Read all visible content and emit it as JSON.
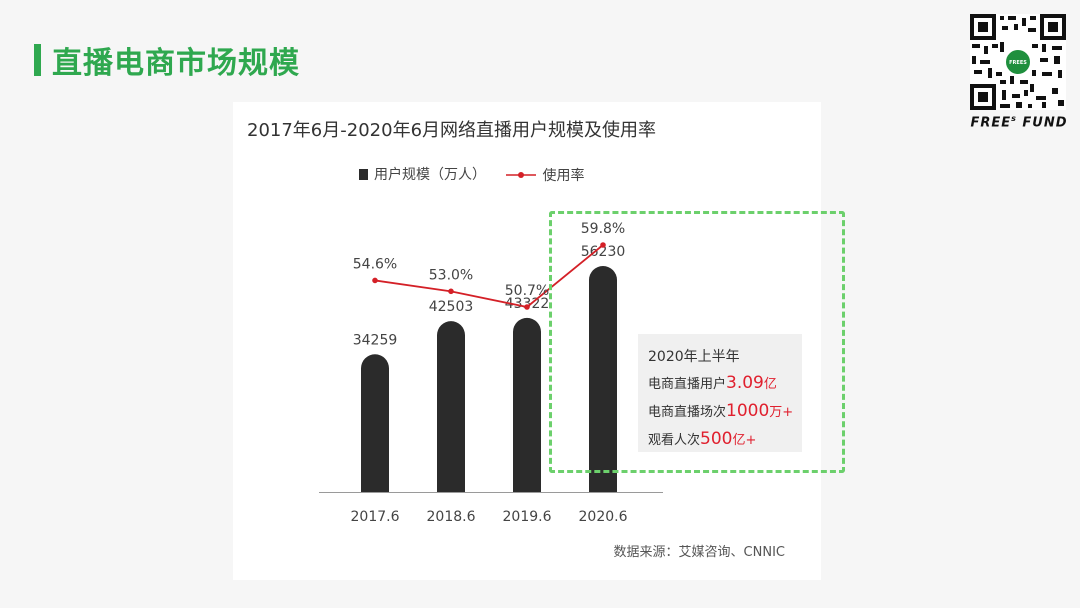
{
  "page": {
    "title": "直播电商市场规模"
  },
  "brand": {
    "name": "FREE",
    "sup": "s",
    "tail": " FUND",
    "qr_center": "FREES"
  },
  "chart_data": {
    "type": "bar",
    "title": "2017年6月-2020年6月网络直播用户规模及使用率",
    "categories": [
      "2017.6",
      "2018.6",
      "2019.6",
      "2020.6"
    ],
    "series": [
      {
        "name": "用户规模（万人）",
        "type": "bar",
        "values": [
          34259,
          42503,
          43322,
          56230
        ],
        "color": "#2b2b2b"
      },
      {
        "name": "使用率",
        "type": "line",
        "values": [
          54.6,
          53.0,
          50.7,
          59.8
        ],
        "labels": [
          "54.6%",
          "53.0%",
          "50.7%",
          "59.8%"
        ],
        "color": "#d42027"
      }
    ],
    "legend_position": "top",
    "grid": false,
    "source": "数据来源：艾媒咨询、CNNIC"
  },
  "info_box": {
    "heading": "2020年上半年",
    "lines": [
      {
        "prefix": "电商直播用户",
        "value": "3.09",
        "unit": "亿"
      },
      {
        "prefix": "电商直播场次",
        "value": "1000",
        "unit": "万+"
      },
      {
        "prefix": "观看人次",
        "value": "500",
        "unit": "亿+"
      }
    ]
  },
  "colors": {
    "accent": "#2fa84f",
    "highlight_border": "#6cd06c",
    "emphasis": "#e0202e"
  }
}
